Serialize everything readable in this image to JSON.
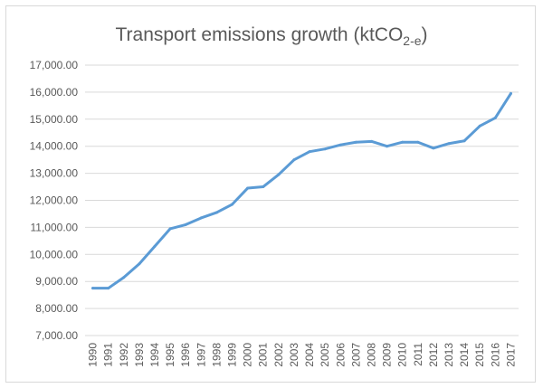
{
  "chart_data": {
    "type": "line",
    "title": "Transport emissions growth (ktCO",
    "title_subscript": "2-e",
    "title_suffix": ")",
    "xlabel": "",
    "ylabel": "",
    "ylim": [
      7000,
      17000
    ],
    "ytick_step": 1000,
    "grid": true,
    "line_color": "#5b9bd5",
    "y_ticks": [
      "7,000.00",
      "8,000.00",
      "9,000.00",
      "10,000.00",
      "11,000.00",
      "12,000.00",
      "13,000.00",
      "14,000.00",
      "15,000.00",
      "16,000.00",
      "17,000.00"
    ],
    "categories": [
      "1990",
      "1991",
      "1992",
      "1993",
      "1994",
      "1995",
      "1996",
      "1997",
      "1998",
      "1999",
      "2000",
      "2001",
      "2002",
      "2003",
      "2004",
      "2005",
      "2006",
      "2007",
      "2008",
      "2009",
      "2010",
      "2011",
      "2012",
      "2013",
      "2014",
      "2015",
      "2016",
      "2017"
    ],
    "series": [
      {
        "values": [
          8750,
          8750,
          9150,
          9650,
          10300,
          10950,
          11100,
          11350,
          11550,
          11850,
          12450,
          12500,
          12950,
          13500,
          13800,
          13900,
          14050,
          14150,
          14180,
          14000,
          14150,
          14150,
          13930,
          14100,
          14200,
          14750,
          15050,
          15950
        ]
      }
    ]
  }
}
